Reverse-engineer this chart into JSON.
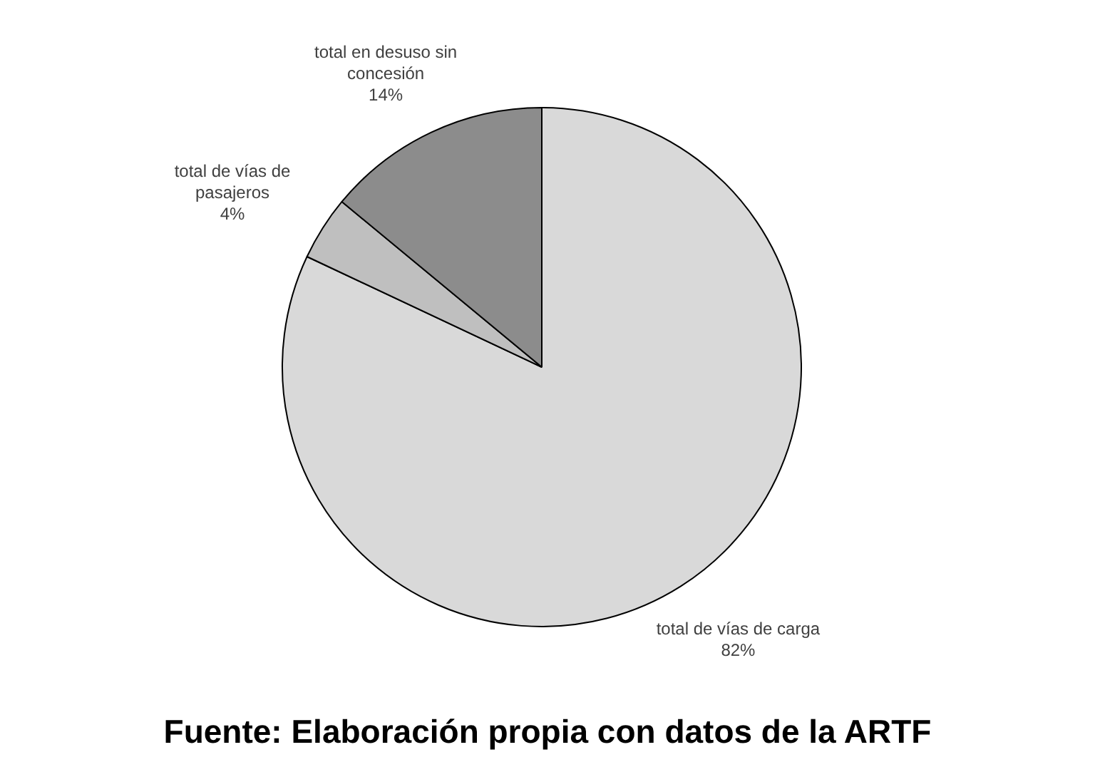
{
  "chart_data": {
    "type": "pie",
    "categories": [
      "total de vías de carga",
      "total de vías de pasajeros",
      "total en desuso sin concesión"
    ],
    "values": [
      82,
      4,
      14
    ],
    "colors": [
      "#d9d9d9",
      "#bfbfbf",
      "#8c8c8c"
    ],
    "value_labels": [
      "82%",
      "4%",
      "14%"
    ],
    "legend": false,
    "annotations": [
      "Fuente: Elaboración propia con datos de la ARTF"
    ]
  }
}
